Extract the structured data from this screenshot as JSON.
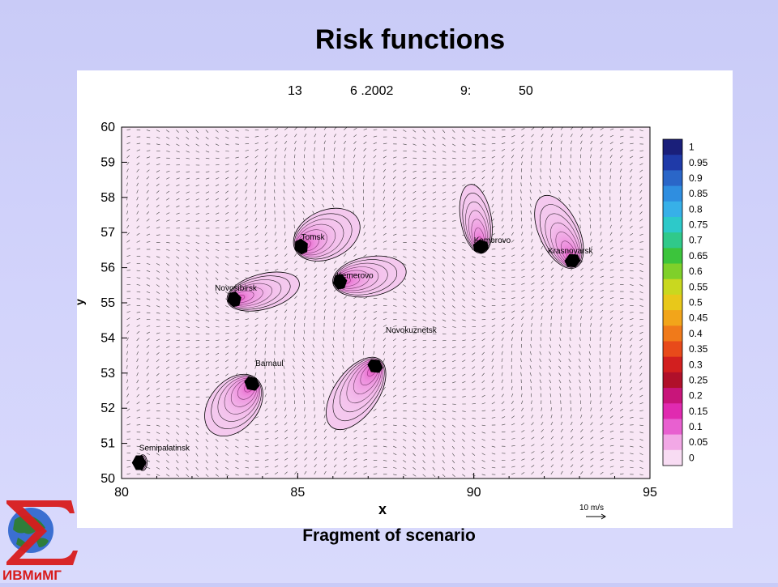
{
  "slide": {
    "title": "Risk functions",
    "caption": "Fragment of scenario"
  },
  "logo": {
    "text": "ИВМиМГ",
    "colors": {
      "sigma": "#d81c1c",
      "globe": "#2f7d3a",
      "ocean": "#3b6fd1"
    }
  },
  "chart_data": {
    "type": "heatmap",
    "header": {
      "day": "13",
      "date": "6 .2002",
      "hour": "9:",
      "minute": "50"
    },
    "xlabel": "x",
    "ylabel": "y",
    "xlim": [
      80,
      95
    ],
    "ylim": [
      50,
      60
    ],
    "x_ticks": [
      "80",
      "85",
      "90",
      "95"
    ],
    "y_ticks": [
      "50",
      "51",
      "52",
      "53",
      "54",
      "55",
      "56",
      "57",
      "58",
      "59",
      "60"
    ],
    "colorbar": {
      "ticks": [
        "1",
        "0.95",
        "0.9",
        "0.85",
        "0.8",
        "0.75",
        "0.7",
        "0.65",
        "0.6",
        "0.55",
        "0.5",
        "0.45",
        "0.4",
        "0.35",
        "0.3",
        "0.25",
        "0.2",
        "0.15",
        "0.1",
        "0.05",
        "0"
      ],
      "colors": [
        "#1a1f7a",
        "#1f3aa8",
        "#2a66c8",
        "#2f8ee0",
        "#37b0e8",
        "#2dc9c9",
        "#30c98a",
        "#3cc43c",
        "#7fd02a",
        "#c9d81f",
        "#e8c81a",
        "#f2a51a",
        "#f07a1a",
        "#e84a1a",
        "#d21f1f",
        "#b0102a",
        "#c8157a",
        "#e02ab0",
        "#e860d0",
        "#f2a8e6",
        "#f8dcf3"
      ]
    },
    "cities": [
      {
        "name": "Semipalatinsk",
        "x": 80.5,
        "y": 50.45,
        "label_dx": 0,
        "label_dy": 0.35
      },
      {
        "name": "Barnaul",
        "x": 83.7,
        "y": 52.9,
        "label_dx": 0.1,
        "label_dy": 0.3
      },
      {
        "name": "Novosibirsk",
        "x": 83.1,
        "y": 55.1,
        "label_dx": -0.45,
        "label_dy": 0.25
      },
      {
        "name": "Tomsk",
        "x": 85.0,
        "y": 56.5,
        "label_dx": 0.1,
        "label_dy": 0.3
      },
      {
        "name": "Kemerovo",
        "x": 86.1,
        "y": 55.5,
        "label_dx": 0.0,
        "label_dy": 0.2
      },
      {
        "name": "Novokuznetsk",
        "x": 87.3,
        "y": 53.3,
        "label_dx": 0.2,
        "label_dy": 0.85
      },
      {
        "name": "Kemerovo",
        "x": 90.3,
        "y": 56.4,
        "label_dx": -0.3,
        "label_dy": 0.3
      },
      {
        "name": "Krasnoyarsk",
        "x": 93.0,
        "y": 56.1,
        "label_dx": -0.9,
        "label_dy": 0.3
      }
    ],
    "plumes": [
      {
        "x": 80.5,
        "y": 50.45,
        "angle": 0,
        "len": 0.2,
        "wid": 0.18
      },
      {
        "x": 83.7,
        "y": 52.7,
        "angle": 230,
        "len": 1.6,
        "wid": 0.55
      },
      {
        "x": 83.2,
        "y": 55.1,
        "angle": 15,
        "len": 1.7,
        "wid": 0.4
      },
      {
        "x": 85.1,
        "y": 56.6,
        "angle": 25,
        "len": 1.6,
        "wid": 0.55
      },
      {
        "x": 86.2,
        "y": 55.6,
        "angle": 10,
        "len": 1.7,
        "wid": 0.45
      },
      {
        "x": 87.2,
        "y": 53.2,
        "angle": 235,
        "len": 1.9,
        "wid": 0.5
      },
      {
        "x": 90.2,
        "y": 56.6,
        "angle": 100,
        "len": 1.6,
        "wid": 0.35
      },
      {
        "x": 92.8,
        "y": 56.2,
        "angle": 115,
        "len": 1.8,
        "wid": 0.45
      }
    ],
    "vector_reference": "10 m/s"
  }
}
